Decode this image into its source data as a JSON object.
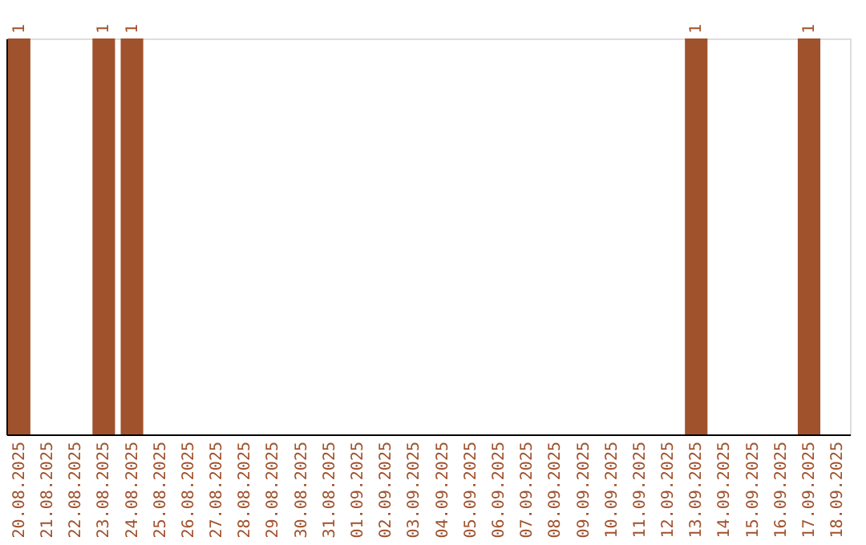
{
  "chart_data": {
    "type": "bar",
    "categories": [
      "20.08.2025",
      "21.08.2025",
      "22.08.2025",
      "23.08.2025",
      "24.08.2025",
      "25.08.2025",
      "26.08.2025",
      "27.08.2025",
      "28.08.2025",
      "29.08.2025",
      "30.08.2025",
      "31.08.2025",
      "01.09.2025",
      "02.09.2025",
      "03.09.2025",
      "04.09.2025",
      "05.09.2025",
      "06.09.2025",
      "07.09.2025",
      "08.09.2025",
      "09.09.2025",
      "10.09.2025",
      "11.09.2025",
      "12.09.2025",
      "13.09.2025",
      "14.09.2025",
      "15.09.2025",
      "16.09.2025",
      "17.09.2025",
      "18.09.2025"
    ],
    "values": [
      1,
      0,
      0,
      1,
      1,
      0,
      0,
      0,
      0,
      0,
      0,
      0,
      0,
      0,
      0,
      0,
      0,
      0,
      0,
      0,
      0,
      0,
      0,
      0,
      1,
      0,
      0,
      0,
      1,
      0
    ],
    "value_labels": [
      "1",
      null,
      null,
      "1",
      "1",
      null,
      null,
      null,
      null,
      null,
      null,
      null,
      null,
      null,
      null,
      null,
      null,
      null,
      null,
      null,
      null,
      null,
      null,
      null,
      "1",
      null,
      null,
      null,
      "1",
      null
    ],
    "color": "#a0522d",
    "tick_labels": "x"
  }
}
